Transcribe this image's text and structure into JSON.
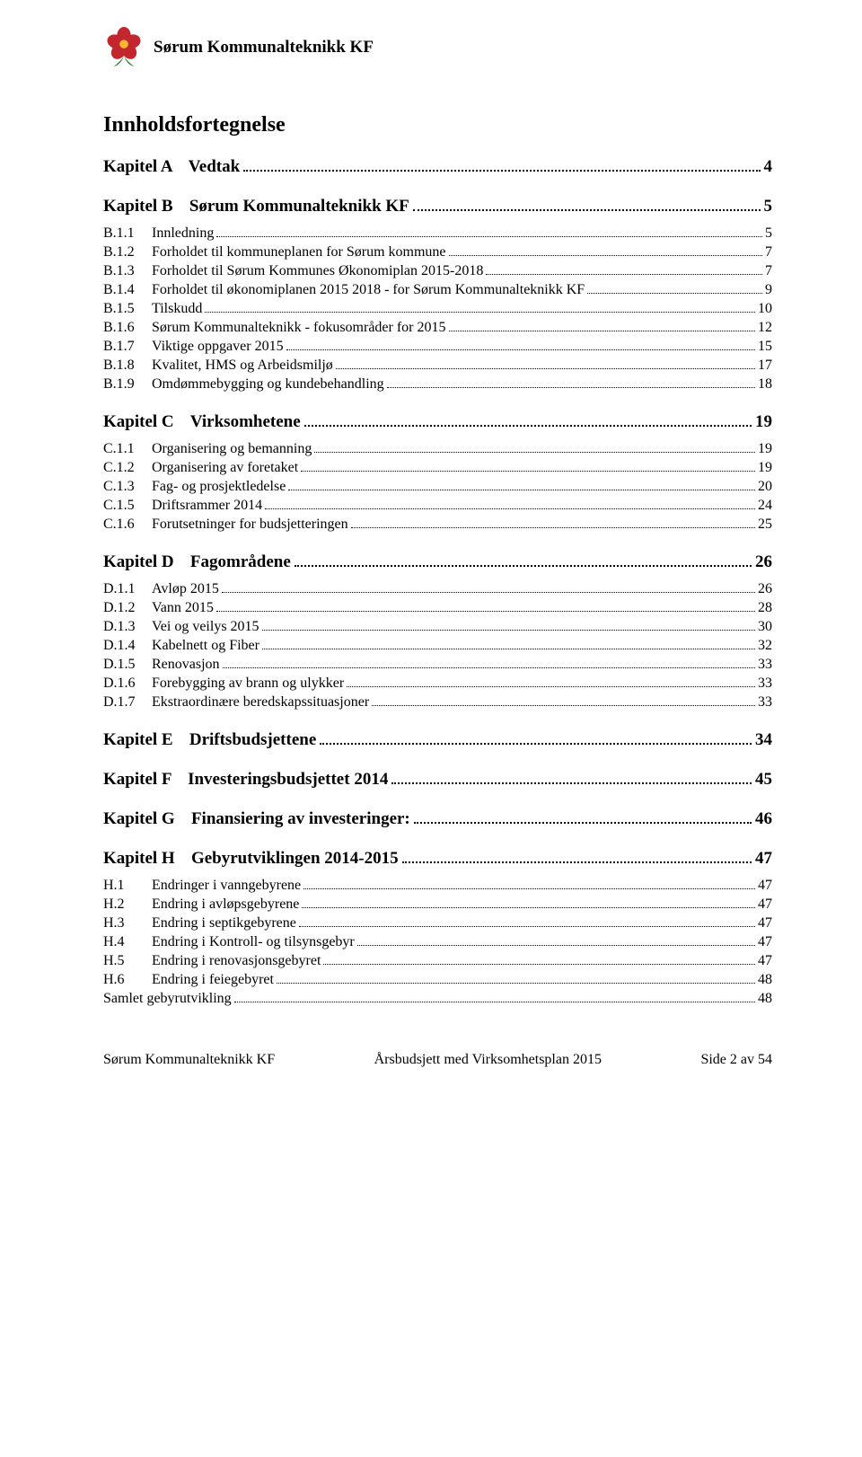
{
  "header": {
    "org": "Sørum Kommunalteknikk KF",
    "logo": {
      "petal_color": "#c1272d",
      "center_color": "#f7b733",
      "leaf_color": "#2e7d32"
    }
  },
  "doc_title": "Innholdsfortegnelse",
  "chapters": [
    {
      "label": "Kapitel A",
      "title": "Vedtak",
      "page": "4",
      "subs": []
    },
    {
      "label": "Kapitel B",
      "title": "Sørum Kommunalteknikk KF",
      "page": "5",
      "subs": [
        {
          "num": "B.1.1",
          "title": "Innledning",
          "page": "5"
        },
        {
          "num": "B.1.2",
          "title": "Forholdet til kommuneplanen for Sørum kommune",
          "page": "7"
        },
        {
          "num": "B.1.3",
          "title": "Forholdet til Sørum Kommunes Økonomiplan 2015-2018",
          "page": "7"
        },
        {
          "num": "B.1.4",
          "title": "Forholdet til økonomiplanen 2015 2018 - for Sørum Kommunalteknikk KF",
          "page": "9"
        },
        {
          "num": "B.1.5",
          "title": "Tilskudd",
          "page": "10"
        },
        {
          "num": "B.1.6",
          "title": "Sørum Kommunalteknikk - fokusområder for 2015",
          "page": "12"
        },
        {
          "num": "B.1.7",
          "title": "Viktige oppgaver 2015",
          "page": "15"
        },
        {
          "num": "B.1.8",
          "title": "Kvalitet, HMS og Arbeidsmiljø",
          "page": "17"
        },
        {
          "num": "B.1.9",
          "title": "Omdømmebygging og kundebehandling",
          "page": "18"
        }
      ]
    },
    {
      "label": "Kapitel C",
      "title": "Virksomhetene",
      "page": "19",
      "subs": [
        {
          "num": "C.1.1",
          "title": "Organisering og bemanning",
          "page": "19"
        },
        {
          "num": "C.1.2",
          "title": "Organisering av foretaket",
          "page": "19"
        },
        {
          "num": "C.1.3",
          "title": "Fag- og prosjektledelse",
          "page": "20"
        },
        {
          "num": "C.1.5",
          "title": "Driftsrammer 2014",
          "page": "24"
        },
        {
          "num": "C.1.6",
          "title": "Forutsetninger for budsjetteringen",
          "page": "25"
        }
      ]
    },
    {
      "label": "Kapitel D",
      "title": "Fagområdene",
      "page": "26",
      "subs": [
        {
          "num": "D.1.1",
          "title": "Avløp 2015",
          "page": "26"
        },
        {
          "num": "D.1.2",
          "title": "Vann 2015",
          "page": "28"
        },
        {
          "num": "D.1.3",
          "title": "Vei og veilys 2015",
          "page": "30"
        },
        {
          "num": "D.1.4",
          "title": "Kabelnett og Fiber",
          "page": "32"
        },
        {
          "num": "D.1.5",
          "title": "Renovasjon",
          "page": "33"
        },
        {
          "num": "D.1.6",
          "title": "Forebygging av brann og ulykker",
          "page": "33"
        },
        {
          "num": "D.1.7",
          "title": "Ekstraordinære beredskapssituasjoner",
          "page": "33"
        }
      ]
    },
    {
      "label": "Kapitel E",
      "title": "Driftsbudsjettene",
      "page": "34",
      "subs": []
    },
    {
      "label": "Kapitel F",
      "title": "Investeringsbudsjettet 2014",
      "page": "45",
      "subs": []
    },
    {
      "label": "Kapitel G",
      "title": "Finansiering av investeringer:",
      "page": "46",
      "subs": []
    },
    {
      "label": "Kapitel H",
      "title": "Gebyrutviklingen 2014-2015",
      "page": "47",
      "subs": [
        {
          "num": "H.1",
          "title": "Endringer i vanngebyrene",
          "page": "47"
        },
        {
          "num": "H.2",
          "title": "Endring i avløpsgebyrene",
          "page": "47"
        },
        {
          "num": "H.3",
          "title": "Endring i septikgebyrene",
          "page": "47"
        },
        {
          "num": "H.4",
          "title": "Endring i Kontroll- og tilsynsgebyr",
          "page": "47"
        },
        {
          "num": "H.5",
          "title": "Endring i renovasjonsgebyret",
          "page": "47"
        },
        {
          "num": "H.6",
          "title": "Endring i feiegebyret",
          "page": "48"
        },
        {
          "num": "",
          "title": "Samlet gebyrutvikling",
          "page": "48"
        }
      ]
    }
  ],
  "footer": {
    "left": "Sørum Kommunalteknikk KF",
    "center": "Årsbudsjett med Virksomhetsplan 2015",
    "right": "Side 2 av 54"
  }
}
